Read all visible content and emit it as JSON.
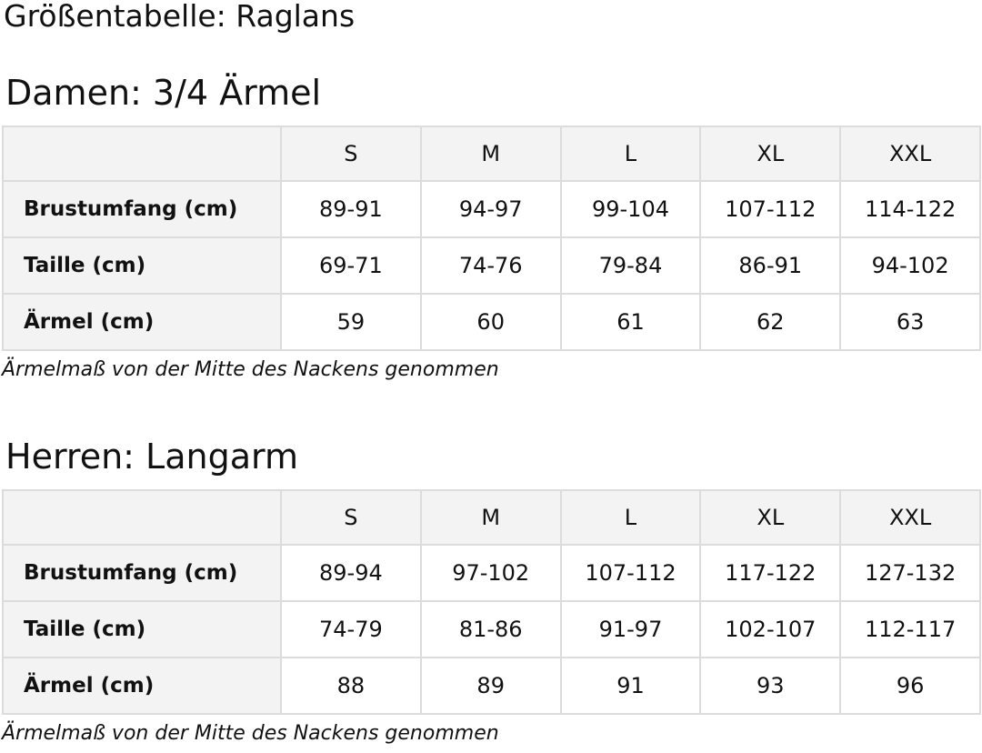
{
  "title": "Größentabelle: Raglans",
  "tables": [
    {
      "heading": "Damen: 3/4 Ärmel",
      "sizes": [
        "S",
        "M",
        "L",
        "XL",
        "XXL"
      ],
      "rows": [
        {
          "label": "Brustumfang (cm)",
          "values": [
            "89-91",
            "94-97",
            "99-104",
            "107-112",
            "114-122"
          ]
        },
        {
          "label": "Taille (cm)",
          "values": [
            "69-71",
            "74-76",
            "79-84",
            "86-91",
            "94-102"
          ]
        },
        {
          "label": "Ärmel (cm)",
          "values": [
            "59",
            "60",
            "61",
            "62",
            "63"
          ]
        }
      ],
      "note": "Ärmelmaß von der Mitte des Nackens genommen"
    },
    {
      "heading": "Herren: Langarm",
      "sizes": [
        "S",
        "M",
        "L",
        "XL",
        "XXL"
      ],
      "rows": [
        {
          "label": "Brustumfang (cm)",
          "values": [
            "89-94",
            "97-102",
            "107-112",
            "117-122",
            "127-132"
          ]
        },
        {
          "label": "Taille (cm)",
          "values": [
            "74-79",
            "81-86",
            "91-97",
            "102-107",
            "112-117"
          ]
        },
        {
          "label": "Ärmel (cm)",
          "values": [
            "88",
            "89",
            "91",
            "93",
            "96"
          ]
        }
      ],
      "note": "Ärmelmaß von der Mitte des Nackens genommen"
    }
  ]
}
